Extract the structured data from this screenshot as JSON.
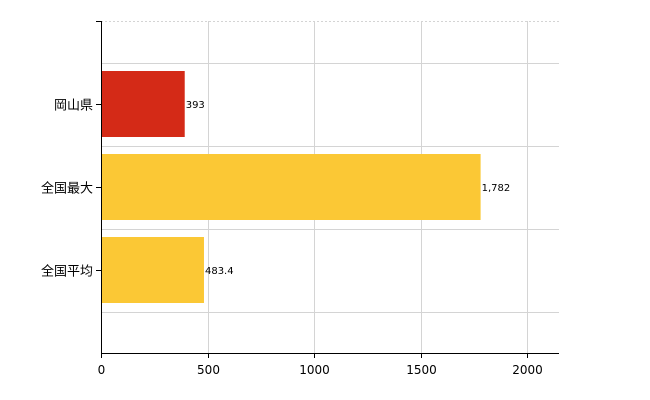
{
  "chart_data": {
    "type": "bar",
    "orientation": "horizontal",
    "title": "",
    "xlabel": "",
    "ylabel": "",
    "categories": [
      "岡山県",
      "全国最大",
      "全国平均"
    ],
    "values": [
      393,
      1782,
      483.4
    ],
    "value_labels": [
      "393",
      "1,782",
      "483.4"
    ],
    "bar_colors": [
      "#d42a17",
      "#fbc835",
      "#fbc835"
    ],
    "xlim": [
      0,
      2150
    ],
    "xticks": [
      0,
      500,
      1000,
      1500,
      2000
    ],
    "xtick_labels": [
      "0",
      "500",
      "1000",
      "1500",
      "2000"
    ],
    "grid": true,
    "legend": "none"
  }
}
